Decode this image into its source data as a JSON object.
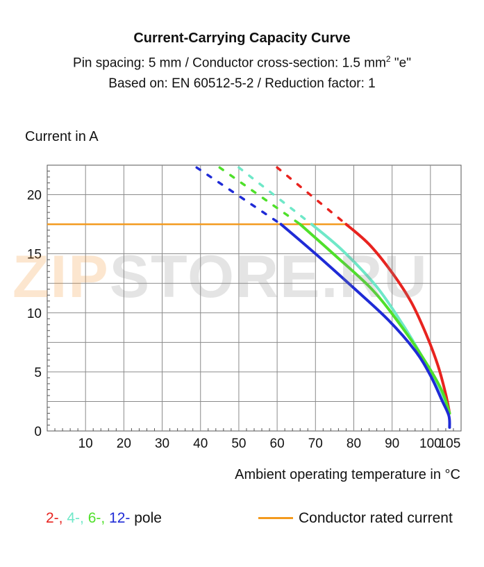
{
  "header": {
    "title": "Current-Carrying Capacity Curve",
    "subtitle_main": "Pin spacing: 5 mm / Conductor cross-section: 1.5 mm",
    "subtitle_sup": "2",
    "subtitle_tail": " \"e\"",
    "subtitle2": "Based on: EN 60512-5-2 / Reduction factor: 1"
  },
  "watermark": {
    "part1": "ZIP",
    "part2": "STORE.RU"
  },
  "legend": {
    "poles": [
      {
        "label": "2-,",
        "color": "#e8231f"
      },
      {
        "label": " 4-,",
        "color": "#6fe8c8"
      },
      {
        "label": " 6-,",
        "color": "#4fe02a"
      },
      {
        "label": " 12-",
        "color": "#1f2bd6"
      }
    ],
    "poles_suffix": " pole",
    "rated": "Conductor rated current",
    "rated_color": "#f39a1e"
  },
  "chart_data": {
    "type": "line",
    "xlabel": "Ambient operating temperature in °C",
    "ylabel": "Current in A",
    "xlim": [
      0,
      108
    ],
    "ylim": [
      0,
      22.5
    ],
    "x_ticks": [
      10,
      20,
      30,
      40,
      50,
      60,
      70,
      80,
      90,
      100,
      105
    ],
    "y_ticks": [
      0,
      5,
      10,
      15,
      20
    ],
    "grid": true,
    "rated_current": {
      "y": 17.5,
      "x_start": 0,
      "x_end": 78,
      "color": "#f39a1e"
    },
    "series": [
      {
        "name": "2-",
        "color": "#e8231f",
        "dashed": [
          [
            60,
            22.3
          ],
          [
            78,
            17.5
          ]
        ],
        "solid": [
          [
            78,
            17.5
          ],
          [
            84,
            15.8
          ],
          [
            90,
            13.4
          ],
          [
            95,
            10.9
          ],
          [
            99,
            8.1
          ],
          [
            102,
            5.5
          ],
          [
            104,
            3.1
          ],
          [
            105,
            1.5
          ]
        ]
      },
      {
        "name": "4-",
        "color": "#6fe8c8",
        "dashed": [
          [
            50,
            22.3
          ],
          [
            69,
            17.5
          ]
        ],
        "solid": [
          [
            69,
            17.5
          ],
          [
            77,
            15.3
          ],
          [
            86,
            12.2
          ],
          [
            93,
            8.9
          ],
          [
            98,
            6.2
          ],
          [
            102,
            3.9
          ],
          [
            104,
            2.4
          ],
          [
            105,
            1.5
          ]
        ]
      },
      {
        "name": "6-",
        "color": "#4fe02a",
        "dashed": [
          [
            45,
            22.3
          ],
          [
            66,
            17.5
          ]
        ],
        "solid": [
          [
            66,
            17.5
          ],
          [
            75,
            14.9
          ],
          [
            85,
            11.9
          ],
          [
            93,
            8.6
          ],
          [
            99,
            5.7
          ],
          [
            103,
            3.4
          ],
          [
            105,
            1.5
          ]
        ]
      },
      {
        "name": "12-",
        "color": "#1f2bd6",
        "dashed": [
          [
            39,
            22.3
          ],
          [
            61,
            17.5
          ]
        ],
        "solid": [
          [
            61,
            17.5
          ],
          [
            70,
            15.0
          ],
          [
            80,
            12.1
          ],
          [
            89,
            9.4
          ],
          [
            96,
            6.8
          ],
          [
            100,
            4.7
          ],
          [
            103,
            2.6
          ],
          [
            104.8,
            1.3
          ],
          [
            105,
            0.3
          ]
        ]
      }
    ]
  }
}
